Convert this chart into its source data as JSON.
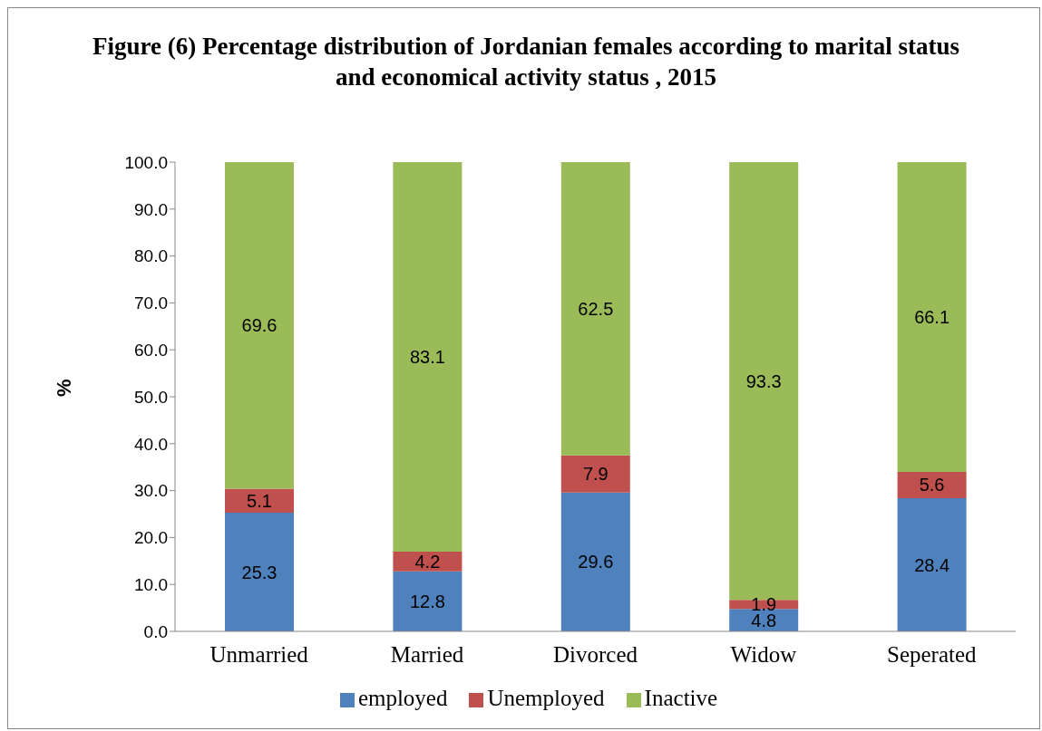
{
  "chart_data": {
    "type": "bar",
    "title": "Figure (6) Percentage distribution of  Jordanian females according to marital status and economical activity status , 2015",
    "ylabel": "%",
    "categories": [
      "Unmarried",
      "Married",
      "Divorced",
      "Widow",
      "Seperated"
    ],
    "stacked": true,
    "data_labels": true,
    "legend": "bottom",
    "grid": false,
    "ylim": [
      0,
      100
    ],
    "yticks": [
      {
        "value": 0,
        "label": "0.0"
      },
      {
        "value": 10,
        "label": "10.0"
      },
      {
        "value": 20,
        "label": "20.0"
      },
      {
        "value": 30,
        "label": "30.0"
      },
      {
        "value": 40,
        "label": "40.0"
      },
      {
        "value": 50,
        "label": "50.0"
      },
      {
        "value": 60,
        "label": "60.0"
      },
      {
        "value": 70,
        "label": "70.0"
      },
      {
        "value": 80,
        "label": "80.0"
      },
      {
        "value": 90,
        "label": "90.0"
      },
      {
        "value": 100,
        "label": "100.0"
      }
    ],
    "series": [
      {
        "name": "employed",
        "color": "#4f81bd",
        "values": [
          25.3,
          12.8,
          29.6,
          4.8,
          28.4
        ]
      },
      {
        "name": "Unemployed",
        "color": "#c0504d",
        "values": [
          5.1,
          4.2,
          7.9,
          1.9,
          5.6
        ]
      },
      {
        "name": "Inactive",
        "color": "#9bbb59",
        "values": [
          69.6,
          83.1,
          62.5,
          93.3,
          66.1
        ]
      }
    ]
  }
}
